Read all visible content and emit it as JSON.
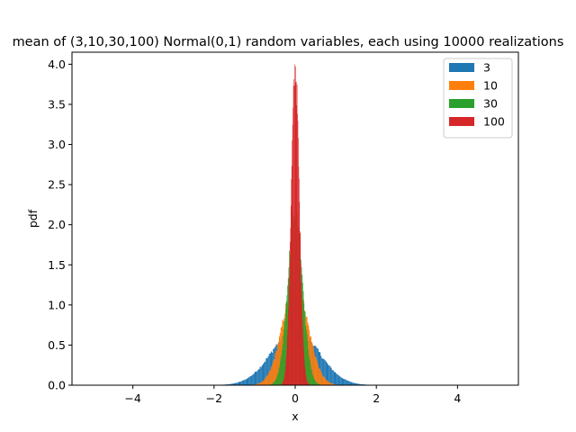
{
  "chart_data": {
    "type": "histogram",
    "title": "mean of (3,10,30,100) Normal(0,1) random variables, each using 10000 realizations",
    "xlabel": "x",
    "ylabel": "pdf",
    "xlim": [
      -5.5,
      5.5
    ],
    "ylim": [
      0,
      4.15
    ],
    "xticks": [
      -4,
      -2,
      0,
      2,
      4
    ],
    "yticks": [
      0.0,
      0.5,
      1.0,
      1.5,
      2.0,
      2.5,
      3.0,
      3.5,
      4.0
    ],
    "ytick_labels": [
      "0.0",
      "0.5",
      "1.0",
      "1.5",
      "2.0",
      "2.5",
      "3.0",
      "3.5",
      "4.0"
    ],
    "xtick_labels": [
      "−4",
      "−2",
      "0",
      "2",
      "4"
    ],
    "legend_position": "top-right",
    "grid": false,
    "series": [
      {
        "name": "3",
        "color": "#1f77b4",
        "sigma": 0.577,
        "bin_width": 0.025,
        "peak_density": 0.69
      },
      {
        "name": "10",
        "color": "#ff7f0e",
        "sigma": 0.316,
        "bin_width": 0.02,
        "peak_density": 1.26
      },
      {
        "name": "30",
        "color": "#2ca02c",
        "sigma": 0.183,
        "bin_width": 0.015,
        "peak_density": 2.18
      },
      {
        "name": "100",
        "color": "#d62728",
        "sigma": 0.1,
        "bin_width": 0.01,
        "peak_density": 3.93
      }
    ]
  }
}
